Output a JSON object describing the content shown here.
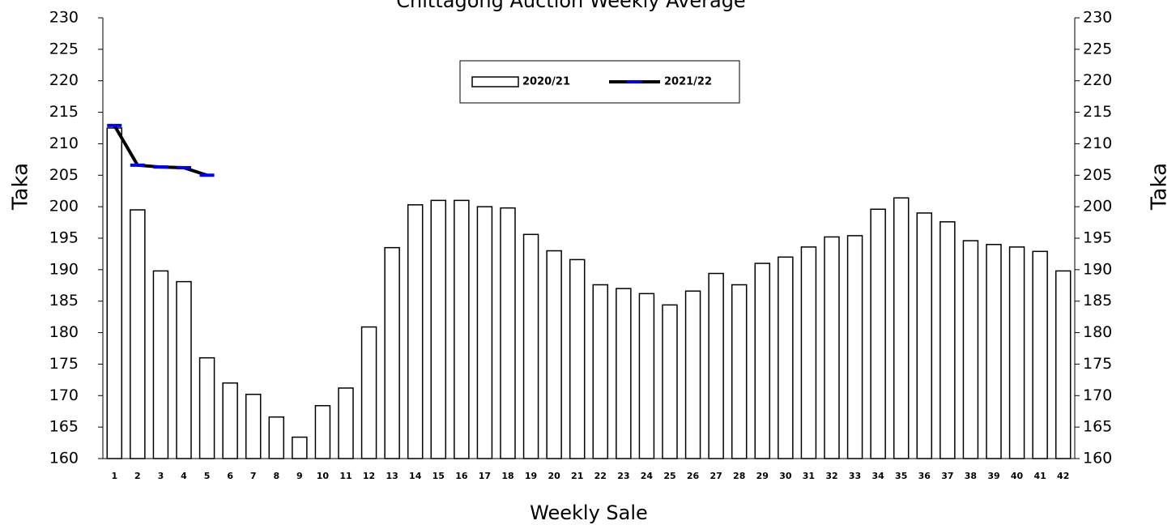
{
  "chart_data": {
    "type": "bar",
    "title": "Chittagong Auction Weekly Average",
    "x_label": "Weekly Sale",
    "y_label": "Taka",
    "y2_label": "Taka",
    "categories": [
      "1",
      "2",
      "3",
      "4",
      "5",
      "6",
      "7",
      "8",
      "9",
      "10",
      "11",
      "12",
      "13",
      "14",
      "15",
      "16",
      "17",
      "18",
      "19",
      "20",
      "21",
      "22",
      "23",
      "24",
      "25",
      "26",
      "27",
      "28",
      "29",
      "30",
      "31",
      "32",
      "33",
      "34",
      "35",
      "36",
      "37",
      "38",
      "39",
      "40",
      "41",
      "42"
    ],
    "series": [
      {
        "name": "2020/21",
        "type": "bar",
        "color": "#ffffff",
        "values": [
          212.5,
          199.5,
          189.8,
          188.1,
          176,
          172,
          170.2,
          166.6,
          163.4,
          168.4,
          171.2,
          180.9,
          193.5,
          200.3,
          201,
          201,
          200,
          199.8,
          195.6,
          193,
          191.6,
          187.6,
          187,
          186.2,
          184.4,
          186.6,
          189.4,
          187.6,
          191,
          192,
          193.6,
          195.2,
          195.4,
          199.6,
          201.4,
          199,
          197.6,
          194.6,
          194,
          193.6,
          192.9,
          189.8
        ]
      },
      {
        "name": "2021/22",
        "type": "line",
        "color": "#000000",
        "marker_color": "#0000ff",
        "values": [
          212.9,
          206.6,
          206.3,
          206.2,
          205,
          null,
          null,
          null,
          null,
          null,
          null,
          null,
          null,
          null,
          null,
          null,
          null,
          null,
          null,
          null,
          null,
          null,
          null,
          null,
          null,
          null,
          null,
          null,
          null,
          null,
          null,
          null,
          null,
          null,
          null,
          null,
          null,
          null,
          null,
          null,
          null,
          null
        ]
      }
    ],
    "ylim": [
      160,
      230
    ],
    "yticks": [
      160,
      165,
      170,
      175,
      180,
      185,
      190,
      195,
      200,
      205,
      210,
      215,
      220,
      225,
      230
    ],
    "y2lim": [
      160,
      230
    ],
    "y2ticks": [
      160,
      165,
      170,
      175,
      180,
      185,
      190,
      195,
      200,
      205,
      210,
      215,
      220,
      225,
      230
    ]
  }
}
